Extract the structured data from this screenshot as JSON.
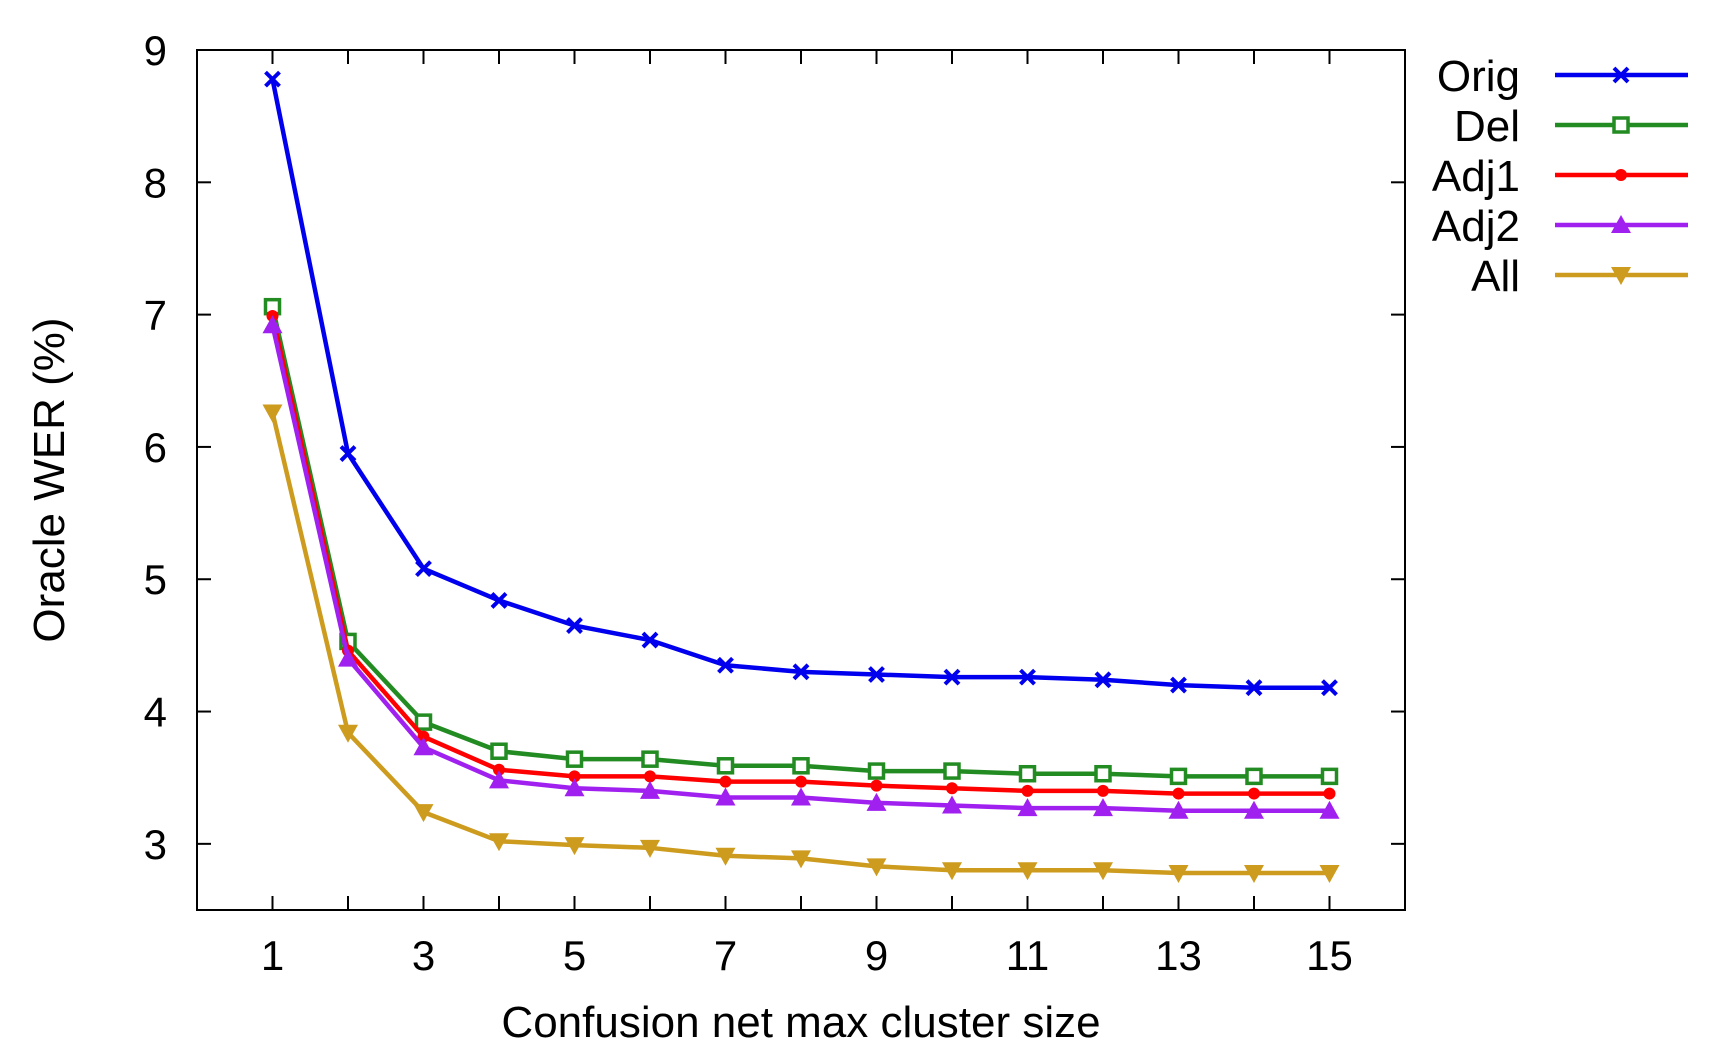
{
  "chart_data": {
    "type": "line",
    "xlabel": "Confusion net max cluster size",
    "ylabel": "Oracle WER (%)",
    "xlim": [
      0,
      16
    ],
    "ylim": [
      2.5,
      9
    ],
    "xticks": [
      1,
      3,
      5,
      7,
      9,
      11,
      13,
      15
    ],
    "yticks": [
      3,
      4,
      5,
      6,
      7,
      8,
      9
    ],
    "grid": false,
    "legend_position": "right",
    "x": [
      1,
      2,
      3,
      4,
      5,
      6,
      7,
      8,
      9,
      10,
      11,
      12,
      13,
      14,
      15
    ],
    "series": [
      {
        "name": "Orig",
        "color": "#0000ee",
        "marker": "x-cross",
        "values": [
          8.78,
          5.95,
          5.08,
          4.84,
          4.65,
          4.54,
          4.35,
          4.3,
          4.28,
          4.26,
          4.26,
          4.24,
          4.2,
          4.18,
          4.18
        ]
      },
      {
        "name": "Del",
        "color": "#228b22",
        "marker": "square",
        "values": [
          7.06,
          4.53,
          3.92,
          3.7,
          3.64,
          3.64,
          3.59,
          3.59,
          3.55,
          3.55,
          3.53,
          3.53,
          3.51,
          3.51,
          3.51
        ]
      },
      {
        "name": "Adj1",
        "color": "#ff0000",
        "marker": "dot",
        "values": [
          6.99,
          4.46,
          3.81,
          3.56,
          3.51,
          3.51,
          3.47,
          3.47,
          3.44,
          3.42,
          3.4,
          3.4,
          3.38,
          3.38,
          3.38
        ]
      },
      {
        "name": "Adj2",
        "color": "#a020f0",
        "marker": "triangle-up",
        "values": [
          6.92,
          4.4,
          3.73,
          3.48,
          3.42,
          3.4,
          3.35,
          3.35,
          3.31,
          3.29,
          3.27,
          3.27,
          3.25,
          3.25,
          3.25
        ]
      },
      {
        "name": "All",
        "color": "#cd9b1d",
        "marker": "triangle-down",
        "values": [
          6.26,
          3.84,
          3.24,
          3.02,
          2.99,
          2.97,
          2.91,
          2.89,
          2.83,
          2.8,
          2.8,
          2.8,
          2.78,
          2.78,
          2.78
        ]
      }
    ]
  }
}
